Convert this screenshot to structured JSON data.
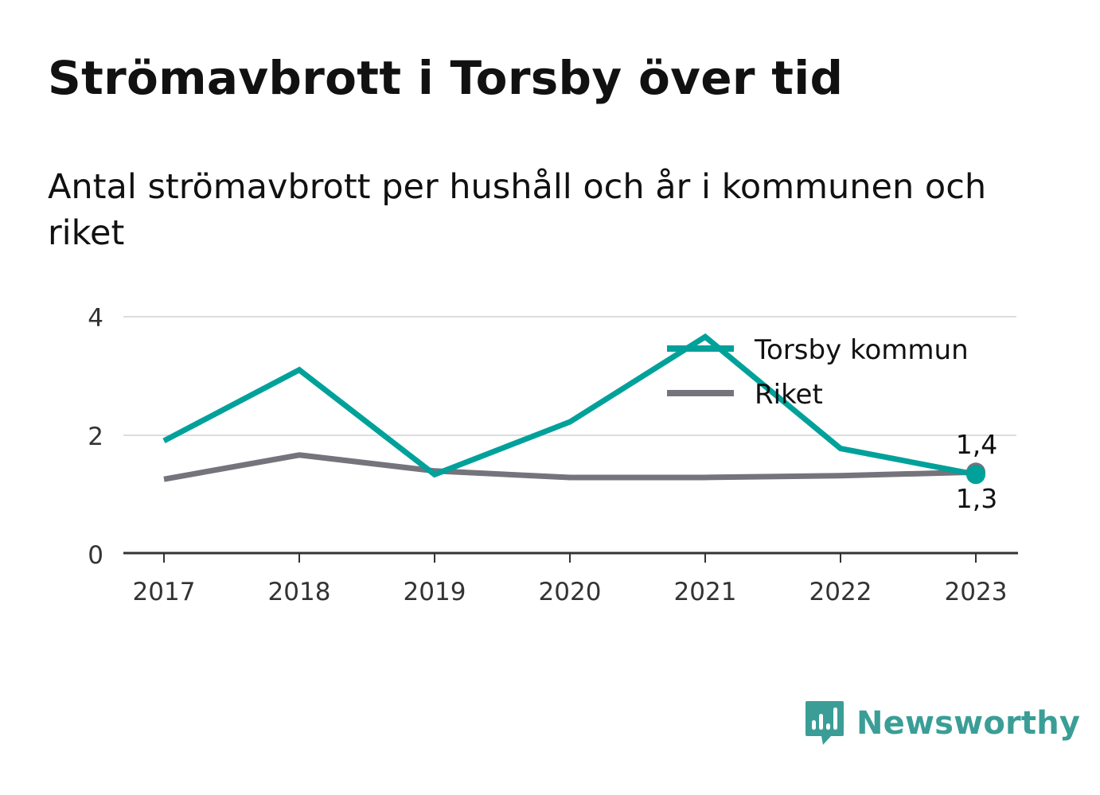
{
  "title": "Strömavbrott i Torsby över tid",
  "subtitle": "Antal strömavbrott per hushåll och år i kommunen och riket",
  "brand": {
    "name": "Newsworthy",
    "icon": "bar-chart-speech-bubble-icon",
    "color": "#3a9e97"
  },
  "chart_data": {
    "type": "line",
    "x": [
      "2017",
      "2018",
      "2019",
      "2020",
      "2021",
      "2022",
      "2023"
    ],
    "series": [
      {
        "name": "Torsby kommun",
        "color": "#00a19a",
        "values": [
          1.9,
          3.1,
          1.33,
          2.22,
          3.66,
          1.77,
          1.33
        ]
      },
      {
        "name": "Riket",
        "color": "#75747c",
        "values": [
          1.25,
          1.66,
          1.39,
          1.28,
          1.28,
          1.31,
          1.37
        ]
      }
    ],
    "end_labels": {
      "Torsby kommun": "1,3",
      "Riket": "1,4"
    },
    "yticks": [
      "0",
      "2",
      "4"
    ],
    "ylim": [
      0,
      4
    ],
    "grid": true,
    "legend": "top-right"
  }
}
